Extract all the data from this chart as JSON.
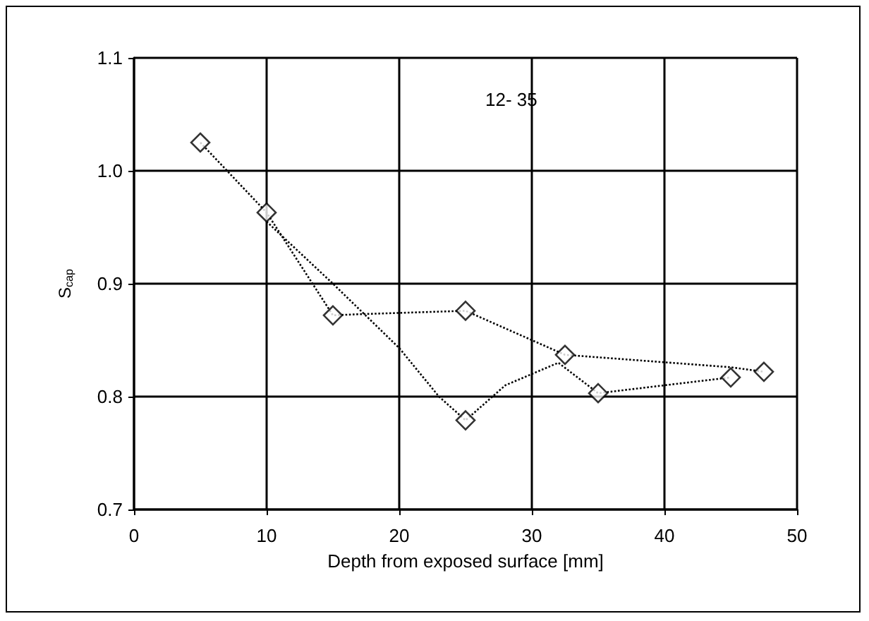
{
  "chart_data": {
    "type": "scatter",
    "xlabel": "Depth from exposed surface [mm]",
    "ylabel": "S$_{cap}$",
    "annotations": [
      "12- 35"
    ],
    "xlim": [
      0,
      50
    ],
    "xticks": [
      0,
      10,
      20,
      30,
      40,
      50
    ],
    "ylim": [
      0.7,
      1.1
    ],
    "yticks": [
      0.7,
      0.8,
      0.9,
      {
        "value": 1.0,
        "label": "1.0"
      },
      1.1
    ],
    "grid": true,
    "marker": "diamond",
    "series": [
      {
        "color": "#000000",
        "x": [
          5,
          10,
          15,
          25,
          25,
          32.5,
          35,
          45,
          47.5
        ],
        "values": [
          1.025,
          0.963,
          0.872,
          0.876,
          0.779,
          0.837,
          0.803,
          0.817,
          0.822
        ]
      },
      {
        "type": "line",
        "color": "#000000",
        "marker": "none",
        "line_style": "dotted",
        "x": [
          5,
          10,
          15,
          17,
          25,
          32.5,
          45,
          47.5
        ],
        "values": [
          1.025,
          0.963,
          0.872,
          0.873,
          0.876,
          0.837,
          0.826,
          0.822
        ]
      },
      {
        "type": "line",
        "color": "#000000",
        "marker": "none",
        "line_style": "dotted",
        "x": [
          10,
          15,
          20,
          23,
          25,
          28,
          32,
          35,
          45
        ],
        "values": [
          0.955,
          0.9,
          0.843,
          0.8,
          0.779,
          0.81,
          0.83,
          0.803,
          0.817
        ]
      }
    ]
  }
}
